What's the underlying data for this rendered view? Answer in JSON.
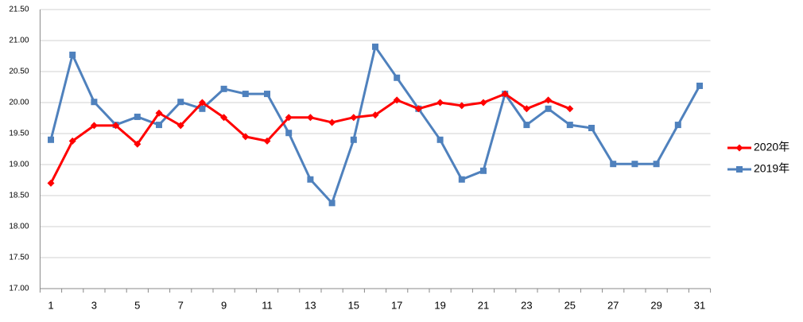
{
  "chart_data": {
    "type": "line",
    "categories": [
      "1",
      null,
      "3",
      null,
      "5",
      null,
      "7",
      null,
      "9",
      null,
      "11",
      null,
      "13",
      null,
      "15",
      null,
      "17",
      null,
      "19",
      null,
      "21",
      null,
      "23",
      null,
      "25",
      null,
      "27",
      null,
      "29",
      null,
      "31"
    ],
    "series": [
      {
        "name": "2020年",
        "color": "#ff0000",
        "marker": "diamond",
        "values": [
          18.7,
          19.38,
          19.63,
          19.63,
          19.33,
          19.83,
          19.63,
          20.0,
          19.76,
          19.45,
          19.38,
          19.76,
          19.76,
          19.68,
          19.76,
          19.8,
          20.04,
          19.9,
          20.0,
          19.95,
          20.0,
          20.14,
          19.9,
          20.04,
          19.9,
          null,
          null,
          null,
          null,
          null,
          null
        ]
      },
      {
        "name": "2019年",
        "color": "#4f81bd",
        "marker": "square",
        "values": [
          19.4,
          20.77,
          20.01,
          19.64,
          19.77,
          19.64,
          20.01,
          19.9,
          20.22,
          20.14,
          20.14,
          19.51,
          18.76,
          18.38,
          19.4,
          20.9,
          20.4,
          19.9,
          19.4,
          18.76,
          18.9,
          20.14,
          19.64,
          19.9,
          19.64,
          19.59,
          19.01,
          19.01,
          19.01,
          19.64,
          20.27
        ]
      }
    ],
    "ylim": [
      17,
      21.5
    ],
    "yticks": [
      {
        "value": 17,
        "label": "17.00"
      },
      {
        "value": 17.5,
        "label": "17.50"
      },
      {
        "value": 18,
        "label": "18.00"
      },
      {
        "value": 18.5,
        "label": "18.50"
      },
      {
        "value": 19,
        "label": "19.00"
      },
      {
        "value": 19.5,
        "label": "19.50"
      },
      {
        "value": 20,
        "label": "20.00"
      },
      {
        "value": 20.5,
        "label": "20.50"
      },
      {
        "value": 21,
        "label": "21.00"
      },
      {
        "value": 21.5,
        "label": "21.50"
      }
    ],
    "grid": true,
    "legend": "right"
  }
}
